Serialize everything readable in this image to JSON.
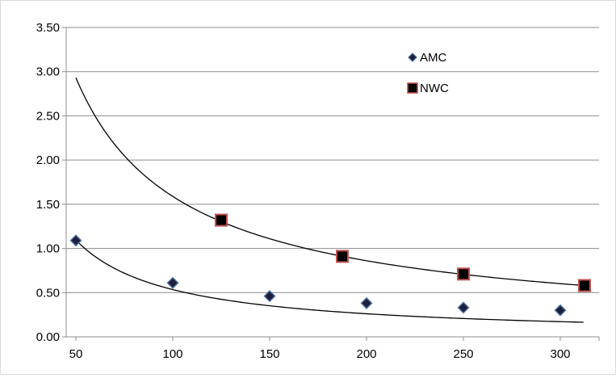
{
  "chart_data": {
    "type": "scatter",
    "title": "",
    "xlabel": "",
    "ylabel": "",
    "xlim": [
      45,
      320
    ],
    "ylim": [
      0,
      3.5
    ],
    "x_ticks": [
      50,
      100,
      150,
      200,
      250,
      300
    ],
    "y_ticks": [
      0,
      0.5,
      1.0,
      1.5,
      2.0,
      2.5,
      3.0,
      3.5
    ],
    "x_tick_labels": [
      "50",
      "100",
      "150",
      "200",
      "250",
      "300"
    ],
    "y_tick_labels": [
      "0.00",
      "0.50",
      "1.00",
      "1.50",
      "2.00",
      "2.50",
      "3.00",
      "3.50"
    ],
    "grid": "horizontal",
    "legend_position": "top-right",
    "series": [
      {
        "name": "AMC",
        "marker": "diamond",
        "marker_color": "#1f1f3a",
        "marker_edge": "#4a6fa5",
        "x": [
          50,
          100,
          150,
          200,
          250,
          300
        ],
        "y": [
          1.09,
          0.61,
          0.46,
          0.38,
          0.33,
          0.3
        ],
        "trendline": {
          "type": "power",
          "x_start": 50,
          "x_end": 312,
          "a": 62.8,
          "b": -1.035
        }
      },
      {
        "name": "NWC",
        "marker": "square",
        "marker_color": "#000000",
        "marker_edge": "#c0504d",
        "x": [
          125,
          187.5,
          250,
          312.5
        ],
        "y": [
          1.32,
          0.91,
          0.71,
          0.58
        ],
        "trendline": {
          "type": "power",
          "x_start": 50,
          "x_end": 312,
          "a": 93.1,
          "b": -0.884
        }
      }
    ]
  }
}
